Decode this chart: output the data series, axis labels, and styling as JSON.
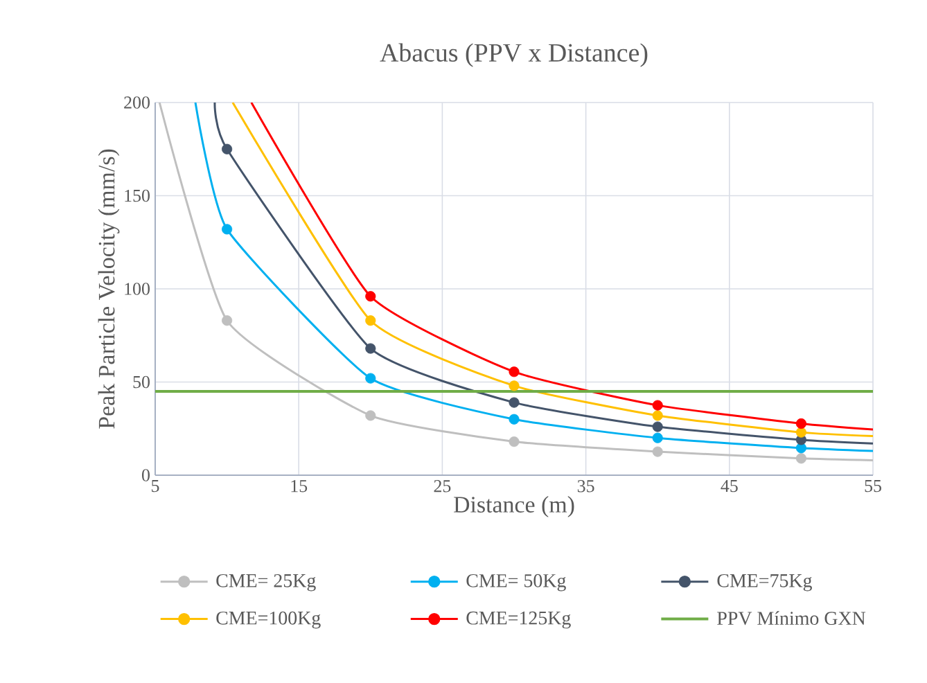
{
  "chart_data": {
    "type": "line",
    "title": "Abacus (PPV x Distance)",
    "xlabel": "Distance (m)",
    "ylabel": "Peak Particle Velocity (mm/s)",
    "xlim": [
      5,
      55
    ],
    "ylim": [
      0,
      200
    ],
    "xticks": [
      5,
      15,
      25,
      35,
      45,
      55
    ],
    "yticks": [
      0,
      50,
      100,
      150,
      200
    ],
    "grid": true,
    "legend": "bottom",
    "series": [
      {
        "type": "line",
        "color": "#bfbfbf",
        "marker": "none",
        "x": [
          5.3,
          10,
          20,
          30,
          40,
          50,
          55
        ],
        "values": [
          200,
          83,
          32,
          18,
          12.6,
          9,
          8
        ]
      },
      {
        "type": "line",
        "color": "#00b0f0",
        "marker": "none",
        "x": [
          7.8,
          10,
          20,
          30,
          40,
          50,
          55
        ],
        "values": [
          200,
          132,
          52,
          30,
          20,
          14.6,
          13
        ]
      },
      {
        "type": "line",
        "color": "#44546a",
        "marker": "none",
        "x": [
          9.15,
          10,
          20,
          30,
          40,
          50,
          55
        ],
        "values": [
          200,
          175,
          68,
          39,
          26,
          19,
          17
        ]
      },
      {
        "type": "line",
        "color": "#ffc000",
        "marker": "none",
        "x": [
          10.4,
          20,
          30,
          40,
          50,
          55
        ],
        "values": [
          200,
          83,
          48,
          32,
          23,
          21
        ]
      },
      {
        "type": "line",
        "color": "#ff0000",
        "marker": "none",
        "x": [
          11.7,
          20,
          30,
          40,
          50,
          55
        ],
        "values": [
          200,
          96,
          55.5,
          37.5,
          27.7,
          24.5
        ]
      },
      {
        "type": "scatter",
        "name": "CME= 25Kg",
        "color": "#bfbfbf",
        "marker": "circle",
        "x": [
          10,
          20,
          30,
          40,
          50
        ],
        "values": [
          83,
          32,
          18,
          12.6,
          9
        ]
      },
      {
        "type": "scatter",
        "name": "CME= 50Kg",
        "color": "#00b0f0",
        "marker": "circle",
        "x": [
          10,
          20,
          30,
          40,
          50
        ],
        "values": [
          132,
          52,
          30,
          20,
          14.6
        ]
      },
      {
        "type": "scatter",
        "name": "CME=75Kg",
        "color": "#44546a",
        "marker": "circle",
        "x": [
          10,
          20,
          30,
          40,
          50
        ],
        "values": [
          175,
          68,
          39,
          26,
          19
        ]
      },
      {
        "type": "scatter",
        "name": "CME=100Kg",
        "color": "#ffc000",
        "marker": "circle",
        "x": [
          20,
          30,
          40,
          50
        ],
        "values": [
          83,
          48,
          32,
          23
        ]
      },
      {
        "type": "scatter",
        "name": "CME=125Kg",
        "color": "#ff0000",
        "marker": "circle",
        "x": [
          20,
          30,
          40,
          50
        ],
        "values": [
          96,
          55.5,
          37.5,
          27.7
        ]
      }
    ],
    "ref_lines": [
      {
        "axis": "y",
        "value": 45,
        "label": "PPV Mínimo GXN",
        "color": "#70ad47"
      }
    ]
  }
}
